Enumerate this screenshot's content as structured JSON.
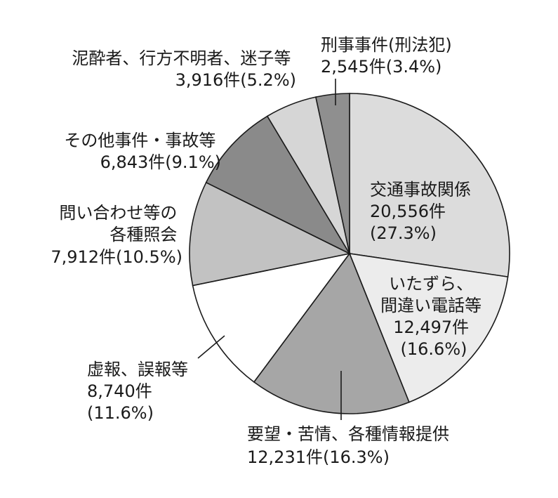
{
  "chart_data": {
    "type": "pie",
    "slices": [
      {
        "name": "交通事故関係",
        "value": 20556,
        "count_text": "20,556件",
        "percent_text": "(27.3%)",
        "color": "#dcdcdc"
      },
      {
        "name": "いたずら、間違い電話等",
        "value": 12497,
        "count_text": "12,497件",
        "percent_text": "(16.6%)",
        "color": "#ececec"
      },
      {
        "name": "要望・苦情、各種情報提供",
        "value": 12231,
        "count_text": "12,231件",
        "percent_text": "(16.3%)",
        "color": "#a6a6a6"
      },
      {
        "name": "虚報、誤報等",
        "value": 8740,
        "count_text": "8,740件",
        "percent_text": "(11.6%)",
        "color": "#ffffff"
      },
      {
        "name": "問い合わせ等の各種照会",
        "value": 7912,
        "count_text": "7,912件",
        "percent_text": "(10.5%)",
        "color": "#c2c2c2"
      },
      {
        "name": "その他事件・事故等",
        "value": 6843,
        "count_text": "6,843件",
        "percent_text": "(9.1%)",
        "color": "#8a8a8a"
      },
      {
        "name": "泥酔者、行方不明者、迷子等",
        "value": 3916,
        "count_text": "3,916件",
        "percent_text": "(5.2%)",
        "color": "#d6d6d6"
      },
      {
        "name": "刑事事件(刑法犯)",
        "value": 2545,
        "count_text": "2,545件",
        "percent_text": "(3.4%)",
        "color": "#8f8f8f"
      }
    ]
  },
  "labels": [
    {
      "lines": [
        "交通事故関係",
        "20,556件",
        "(27.3%)"
      ]
    },
    {
      "lines": [
        "いたずら、",
        "間違い電話等",
        "12,497件",
        "(16.6%)"
      ]
    },
    {
      "lines": [
        "要望・苦情、各種情報提供",
        "12,231件(16.3%)"
      ]
    },
    {
      "lines": [
        "虚報、誤報等",
        "8,740件",
        "(11.6%)"
      ]
    },
    {
      "lines": [
        "問い合わせ等の",
        "各種照会",
        "7,912件(10.5%)"
      ]
    },
    {
      "lines": [
        "その他事件・事故等",
        "6,843件(9.1%)"
      ]
    },
    {
      "lines": [
        "泥酔者、行方不明者、迷子等",
        "3,916件(5.2%)"
      ]
    },
    {
      "lines": [
        "刑事事件(刑法犯)",
        "2,545件(3.4%)"
      ]
    }
  ]
}
